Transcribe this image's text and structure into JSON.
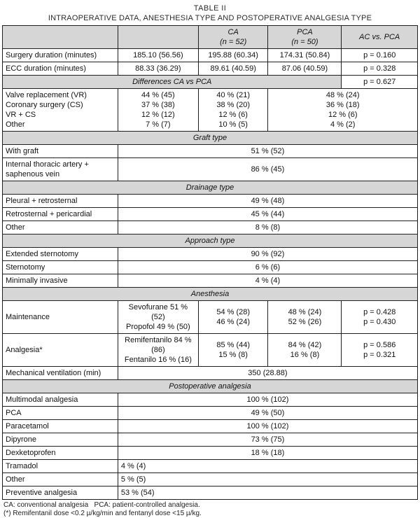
{
  "title": {
    "line1": "TABLE II",
    "line2": "INTRAOPERATIVE DATA, ANESTHESIA TYPE AND POSTOPERATIVE ANALGESIA TYPE"
  },
  "colors": {
    "header_bg": "#d6d6d6",
    "border": "#1f1f1f"
  },
  "footnotes": [
    "CA: conventional analgesia   PCA: patient-controlled analgesia.",
    "(*) Remifentanil dose <0.2 µ/kg/min and fentanyl dose <15 µ/kg."
  ],
  "table": {
    "col_widths": [
      "27.8%",
      "19.4%",
      "16.8%",
      "17.7%",
      "18.3%"
    ],
    "rows": [
      {
        "cells": [
          {
            "text": "",
            "cls": "head"
          },
          {
            "text": "",
            "cls": "head"
          },
          {
            "lines": [
              "CA",
              "(n = 52)"
            ],
            "cls": "head"
          },
          {
            "lines": [
              "PCA",
              "(n = 50)"
            ],
            "cls": "head"
          },
          {
            "text": "AC vs. PCA",
            "cls": "head"
          }
        ]
      },
      {
        "cells": [
          {
            "text": "Surgery duration (minutes)",
            "cls": "label"
          },
          {
            "text": "185.10 (56.56)",
            "cls": "val"
          },
          {
            "text": "195.88 (60.34)",
            "cls": "val"
          },
          {
            "text": "174.31 (50.84)",
            "cls": "val"
          },
          {
            "text": "p = 0.160",
            "cls": "val"
          }
        ]
      },
      {
        "cells": [
          {
            "text": "ECC duration (minutes)",
            "cls": "label"
          },
          {
            "text": "88.33 (36.29)",
            "cls": "val"
          },
          {
            "text": "89.61 (40.59)",
            "cls": "val"
          },
          {
            "text": "87.06 (40.59)",
            "cls": "val"
          },
          {
            "text": "p = 0.328",
            "cls": "val"
          }
        ]
      },
      {
        "cells": [
          {
            "text": "Differences CA vs PCA",
            "cls": "section",
            "colspan": 4
          },
          {
            "text": "p = 0.627",
            "cls": "val"
          }
        ]
      },
      {
        "cells": [
          {
            "lines": [
              "Valve replacement (VR)",
              "Coronary surgery (CS)",
              "VR + CS",
              "Other"
            ],
            "cls": "label"
          },
          {
            "lines": [
              "44 % (45)",
              "37 % (38)",
              "12 % (12)",
              "7 % (7)"
            ],
            "cls": "val"
          },
          {
            "lines": [
              "40 % (21)",
              "38 % (20)",
              "12 % (6)",
              "10 % (5)"
            ],
            "cls": "val"
          },
          {
            "lines": [
              "48 % (24)",
              "36 % (18)",
              "12 % (6)",
              "4 % (2)"
            ],
            "cls": "val",
            "colspan": 2
          }
        ]
      },
      {
        "cells": [
          {
            "text": "Graft type",
            "cls": "section",
            "colspan": 5
          }
        ]
      },
      {
        "cells": [
          {
            "text": "With graft",
            "cls": "label"
          },
          {
            "text": "51 % (52)",
            "cls": "val",
            "colspan": 4
          }
        ]
      },
      {
        "cells": [
          {
            "text": "Internal thoracic artery + saphenous vein",
            "cls": "label"
          },
          {
            "text": "86 % (45)",
            "cls": "val",
            "colspan": 4
          }
        ]
      },
      {
        "cells": [
          {
            "text": "Drainage type",
            "cls": "section",
            "colspan": 5
          }
        ]
      },
      {
        "cells": [
          {
            "text": "Pleural + retrosternal",
            "cls": "label"
          },
          {
            "text": "49 % (48)",
            "cls": "val",
            "colspan": 4
          }
        ]
      },
      {
        "cells": [
          {
            "text": "Retrosternal + pericardial",
            "cls": "label"
          },
          {
            "text": "45 % (44)",
            "cls": "val",
            "colspan": 4
          }
        ]
      },
      {
        "cells": [
          {
            "text": "Other",
            "cls": "label"
          },
          {
            "text": "8 % (8)",
            "cls": "val",
            "colspan": 4
          }
        ]
      },
      {
        "cells": [
          {
            "text": "Approach type",
            "cls": "section",
            "colspan": 5
          }
        ]
      },
      {
        "cells": [
          {
            "text": "Extended sternotomy",
            "cls": "label"
          },
          {
            "text": "90 % (92)",
            "cls": "val",
            "colspan": 4
          }
        ]
      },
      {
        "cells": [
          {
            "text": "Sternotomy",
            "cls": "label"
          },
          {
            "text": "6 % (6)",
            "cls": "val",
            "colspan": 4
          }
        ]
      },
      {
        "cells": [
          {
            "text": "Minimally invasive",
            "cls": "label"
          },
          {
            "text": "4 % (4)",
            "cls": "val",
            "colspan": 4
          }
        ]
      },
      {
        "cells": [
          {
            "text": "Anesthesia",
            "cls": "section",
            "colspan": 5
          }
        ]
      },
      {
        "cells": [
          {
            "text": "Maintenance",
            "cls": "label"
          },
          {
            "lines": [
              "Sevofurane 51 % (52)",
              "Propofol 49 % (50)"
            ],
            "cls": "val"
          },
          {
            "lines": [
              "54 % (28)",
              "46 % (24)"
            ],
            "cls": "val"
          },
          {
            "lines": [
              "48 % (24)",
              "52 % (26)"
            ],
            "cls": "val"
          },
          {
            "lines": [
              "p = 0.428",
              "p = 0.430"
            ],
            "cls": "val"
          }
        ]
      },
      {
        "cells": [
          {
            "text": "Analgesia*",
            "cls": "label"
          },
          {
            "lines": [
              "Remifentanilo 84 %",
              "(86)",
              "Fentanilo 16 % (16)"
            ],
            "cls": "val"
          },
          {
            "lines": [
              "85 % (44)",
              "15 % (8)"
            ],
            "cls": "val"
          },
          {
            "lines": [
              "84 % (42)",
              "16 % (8)"
            ],
            "cls": "val"
          },
          {
            "lines": [
              "p = 0.586",
              "p = 0.321"
            ],
            "cls": "val"
          }
        ]
      },
      {
        "cells": [
          {
            "text": "Mechanical ventilation (min)",
            "cls": "label"
          },
          {
            "text": "350 (28.88)",
            "cls": "val",
            "colspan": 4
          }
        ]
      },
      {
        "cells": [
          {
            "text": "Postoperative analgesia",
            "cls": "section",
            "colspan": 5
          }
        ]
      },
      {
        "cells": [
          {
            "text": "Multimodal analgesia",
            "cls": "label"
          },
          {
            "text": "100 % (102)",
            "cls": "val",
            "colspan": 4
          }
        ]
      },
      {
        "cells": [
          {
            "text": "PCA",
            "cls": "label"
          },
          {
            "text": "49 % (50)",
            "cls": "val",
            "colspan": 4
          }
        ]
      },
      {
        "cells": [
          {
            "text": "Paracetamol",
            "cls": "label"
          },
          {
            "text": "100 % (102)",
            "cls": "val",
            "colspan": 4
          }
        ]
      },
      {
        "cells": [
          {
            "text": "Dipyrone",
            "cls": "label"
          },
          {
            "text": "73 % (75)",
            "cls": "val",
            "colspan": 4
          }
        ]
      },
      {
        "cells": [
          {
            "text": "Dexketoprofen",
            "cls": "label"
          },
          {
            "text": "18 % (18)",
            "cls": "val",
            "colspan": 4
          }
        ]
      },
      {
        "cells": [
          {
            "text": "Tramadol",
            "cls": "label"
          },
          {
            "text": "4 % (4)",
            "cls": "val-left",
            "colspan": 4
          }
        ]
      },
      {
        "cells": [
          {
            "text": "Other",
            "cls": "label"
          },
          {
            "text": "5 % (5)",
            "cls": "val-left",
            "colspan": 4
          }
        ]
      },
      {
        "cells": [
          {
            "text": "Preventive analgesia",
            "cls": "label"
          },
          {
            "text": "53 % (54)",
            "cls": "val-left",
            "colspan": 4
          }
        ]
      }
    ]
  }
}
